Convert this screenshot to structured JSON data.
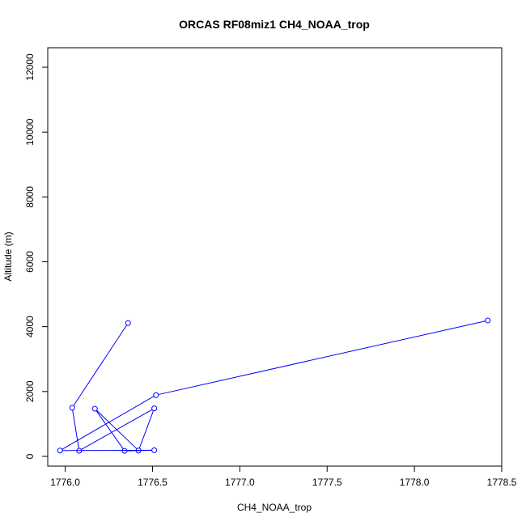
{
  "chart_data": {
    "type": "line",
    "title": "ORCAS RF08miz1 CH4_NOAA_trop",
    "xlabel": "CH4_NOAA_trop",
    "ylabel": "Altitude (m)",
    "xlim": [
      1775.9,
      1778.5
    ],
    "ylim": [
      -300,
      12600
    ],
    "xticks": [
      1776.0,
      1776.5,
      1777.0,
      1777.5,
      1778.0,
      1778.5
    ],
    "xtick_labels": [
      "1776.0",
      "1776.5",
      "1777.0",
      "1777.5",
      "1778.0",
      "1778.5"
    ],
    "yticks": [
      0,
      2000,
      4000,
      6000,
      8000,
      10000,
      12000
    ],
    "ytick_labels": [
      "0",
      "2000",
      "4000",
      "6000",
      "8000",
      "10000",
      "12000"
    ],
    "grid": false,
    "series": [
      {
        "color": "#0000ff",
        "marker": "open-circle",
        "points": [
          {
            "x": 1776.36,
            "y": 4110
          },
          {
            "x": 1776.04,
            "y": 1500
          },
          {
            "x": 1776.08,
            "y": 175
          },
          {
            "x": 1776.51,
            "y": 1480
          },
          {
            "x": 1776.42,
            "y": 180
          },
          {
            "x": 1776.17,
            "y": 1470
          },
          {
            "x": 1776.34,
            "y": 170
          },
          {
            "x": 1776.51,
            "y": 190
          },
          {
            "x": 1775.97,
            "y": 180
          },
          {
            "x": 1776.52,
            "y": 1890
          },
          {
            "x": 1778.42,
            "y": 4190
          }
        ]
      }
    ]
  }
}
